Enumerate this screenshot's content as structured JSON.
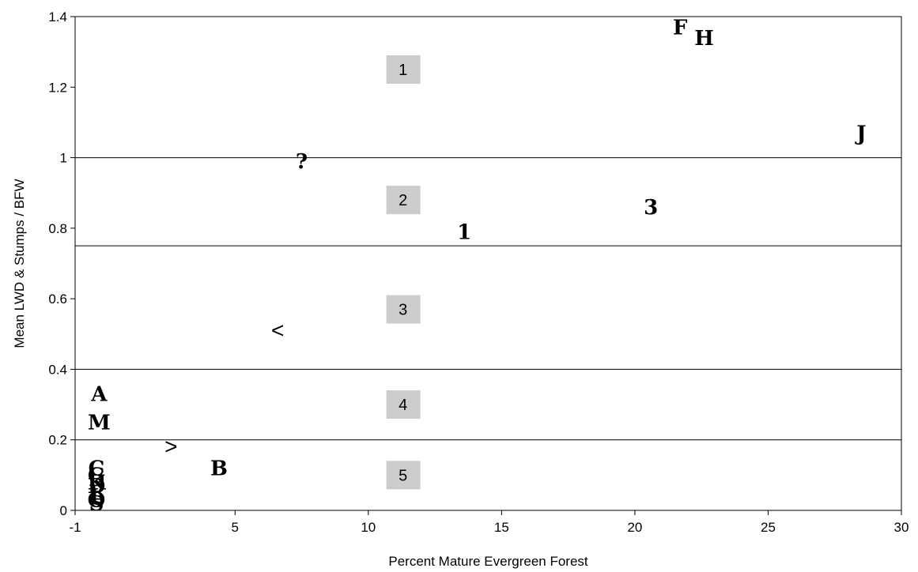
{
  "chart_data": {
    "type": "scatter",
    "xlabel": "Percent Mature Evergreen Forest",
    "ylabel": "Mean LWD & Stumps / BFW",
    "xlim": [
      -1,
      30
    ],
    "ylim": [
      0,
      1.4
    ],
    "x_ticks": [
      -1,
      5,
      10,
      15,
      20,
      25,
      30
    ],
    "y_ticks": [
      0,
      0.2,
      0.4,
      0.6,
      0.8,
      1,
      1.2,
      1.4
    ],
    "x_tick_labels": [
      "-1",
      "5",
      "10",
      "15",
      "20",
      "25",
      "30"
    ],
    "y_tick_labels": [
      "0",
      "0.2",
      "0.4",
      "0.6",
      "0.8",
      "1",
      "1.2",
      "1.4"
    ],
    "grid": false,
    "threshold_lines": [
      1.0,
      0.75,
      0.4,
      0.2
    ],
    "zones": [
      {
        "label": "1",
        "x": 11.3,
        "y": 1.25
      },
      {
        "label": "2",
        "x": 11.3,
        "y": 0.88
      },
      {
        "label": "3",
        "x": 11.3,
        "y": 0.57
      },
      {
        "label": "4",
        "x": 11.3,
        "y": 0.3
      },
      {
        "label": "5",
        "x": 11.3,
        "y": 0.1
      }
    ],
    "points": [
      {
        "label": "F",
        "x": 21.7,
        "y": 1.37
      },
      {
        "label": "H",
        "x": 22.6,
        "y": 1.34
      },
      {
        "label": "J",
        "x": 28.5,
        "y": 1.07
      },
      {
        "label": "?",
        "x": 7.5,
        "y": 0.99
      },
      {
        "label": "3",
        "x": 20.6,
        "y": 0.86
      },
      {
        "label": "1",
        "x": 13.6,
        "y": 0.79
      },
      {
        "label": "<",
        "x": 6.6,
        "y": 0.51
      },
      {
        "label": "A",
        "x": -0.1,
        "y": 0.33
      },
      {
        "label": "M",
        "x": -0.1,
        "y": 0.25
      },
      {
        "label": ">",
        "x": 2.6,
        "y": 0.18
      },
      {
        "label": "B",
        "x": 4.4,
        "y": 0.12
      },
      {
        "label": "C",
        "x": -0.2,
        "y": 0.12
      },
      {
        "label": "G",
        "x": -0.2,
        "y": 0.1
      },
      {
        "label": "K",
        "x": -0.2,
        "y": 0.08
      },
      {
        "label": "D",
        "x": -0.2,
        "y": 0.07
      },
      {
        "label": "E",
        "x": -0.2,
        "y": 0.05
      },
      {
        "label": "L",
        "x": -0.2,
        "y": 0.04
      },
      {
        "label": "O",
        "x": -0.2,
        "y": 0.03
      },
      {
        "label": "S",
        "x": -0.2,
        "y": 0.02
      }
    ]
  }
}
